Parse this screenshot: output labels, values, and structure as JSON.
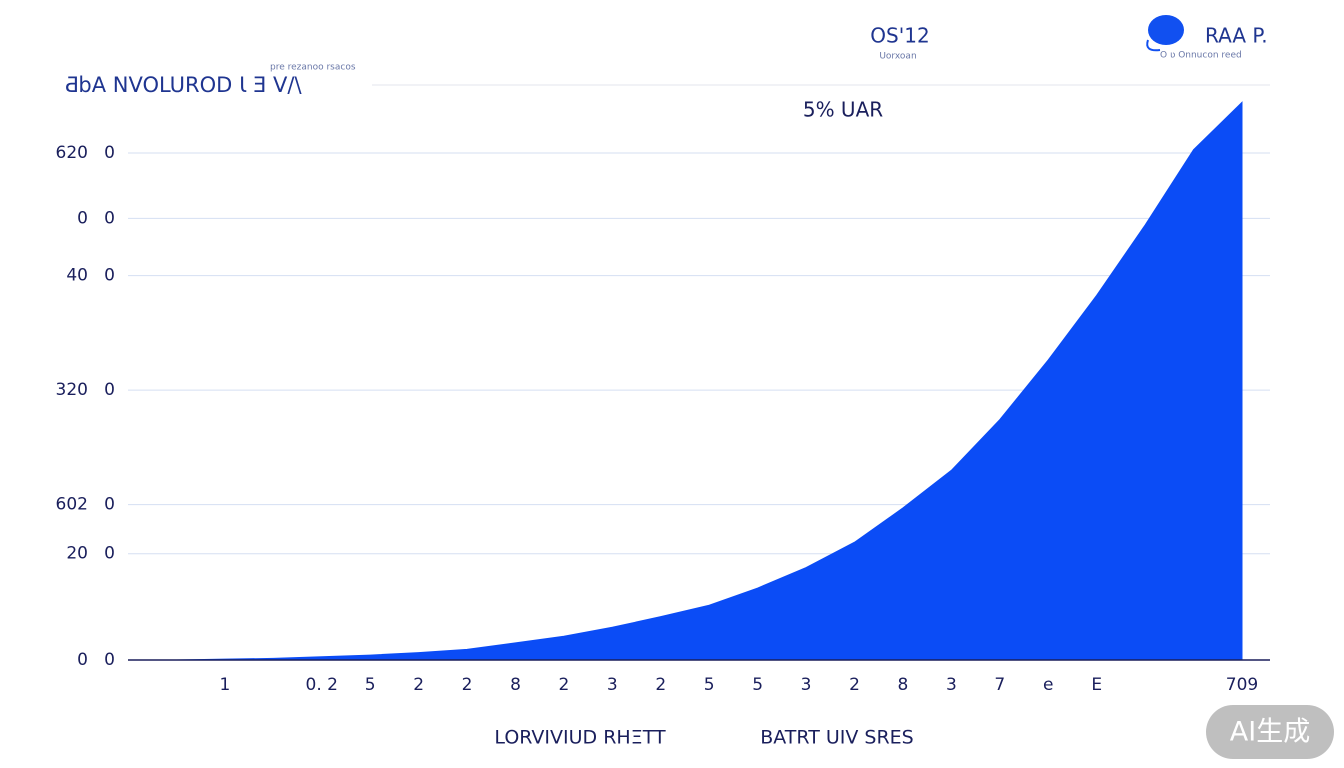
{
  "chart_data": {
    "type": "area",
    "title": "ƋbA NVOLUROD Ɩ Ǝ V/\\",
    "subtitle": "pre rezanoo rsacos",
    "annotation": "5% UAR",
    "header_left": "OS'12",
    "header_left_sub": "Uorxoan",
    "brand": "RAA P.",
    "brand_sub": "O ʋ Onnucon reed",
    "x_label_left": "LORVIVIUD RHΞTT",
    "x_label_right": "BATRT UIV SRES",
    "watermark": "AI生成",
    "color": "#0b4cf6",
    "categories": [
      null,
      null,
      "1",
      null,
      "0. 2",
      "5",
      "2",
      "2",
      "8",
      "2",
      "3",
      "2",
      "5",
      "5",
      "3",
      "2",
      "8",
      "3",
      "7",
      "e",
      "E",
      null,
      null,
      "709"
    ],
    "values": [
      0,
      0,
      10,
      20,
      40,
      60,
      90,
      130,
      210,
      290,
      400,
      530,
      670,
      880,
      1130,
      1440,
      1860,
      2320,
      2940,
      3670,
      4460,
      5320,
      6240,
      6820
    ],
    "ylim": [
      0,
      7000
    ],
    "yticks": [
      {
        "value": 0,
        "label": "0   0"
      },
      {
        "value": 1300,
        "label": "20   0"
      },
      {
        "value": 1900,
        "label": "602   0"
      },
      {
        "value": 3300,
        "label": "320   0"
      },
      {
        "value": 4700,
        "label": "40   0"
      },
      {
        "value": 5400,
        "label": "0   0"
      },
      {
        "value": 6200,
        "label": "620   0"
      }
    ],
    "grid": true
  }
}
